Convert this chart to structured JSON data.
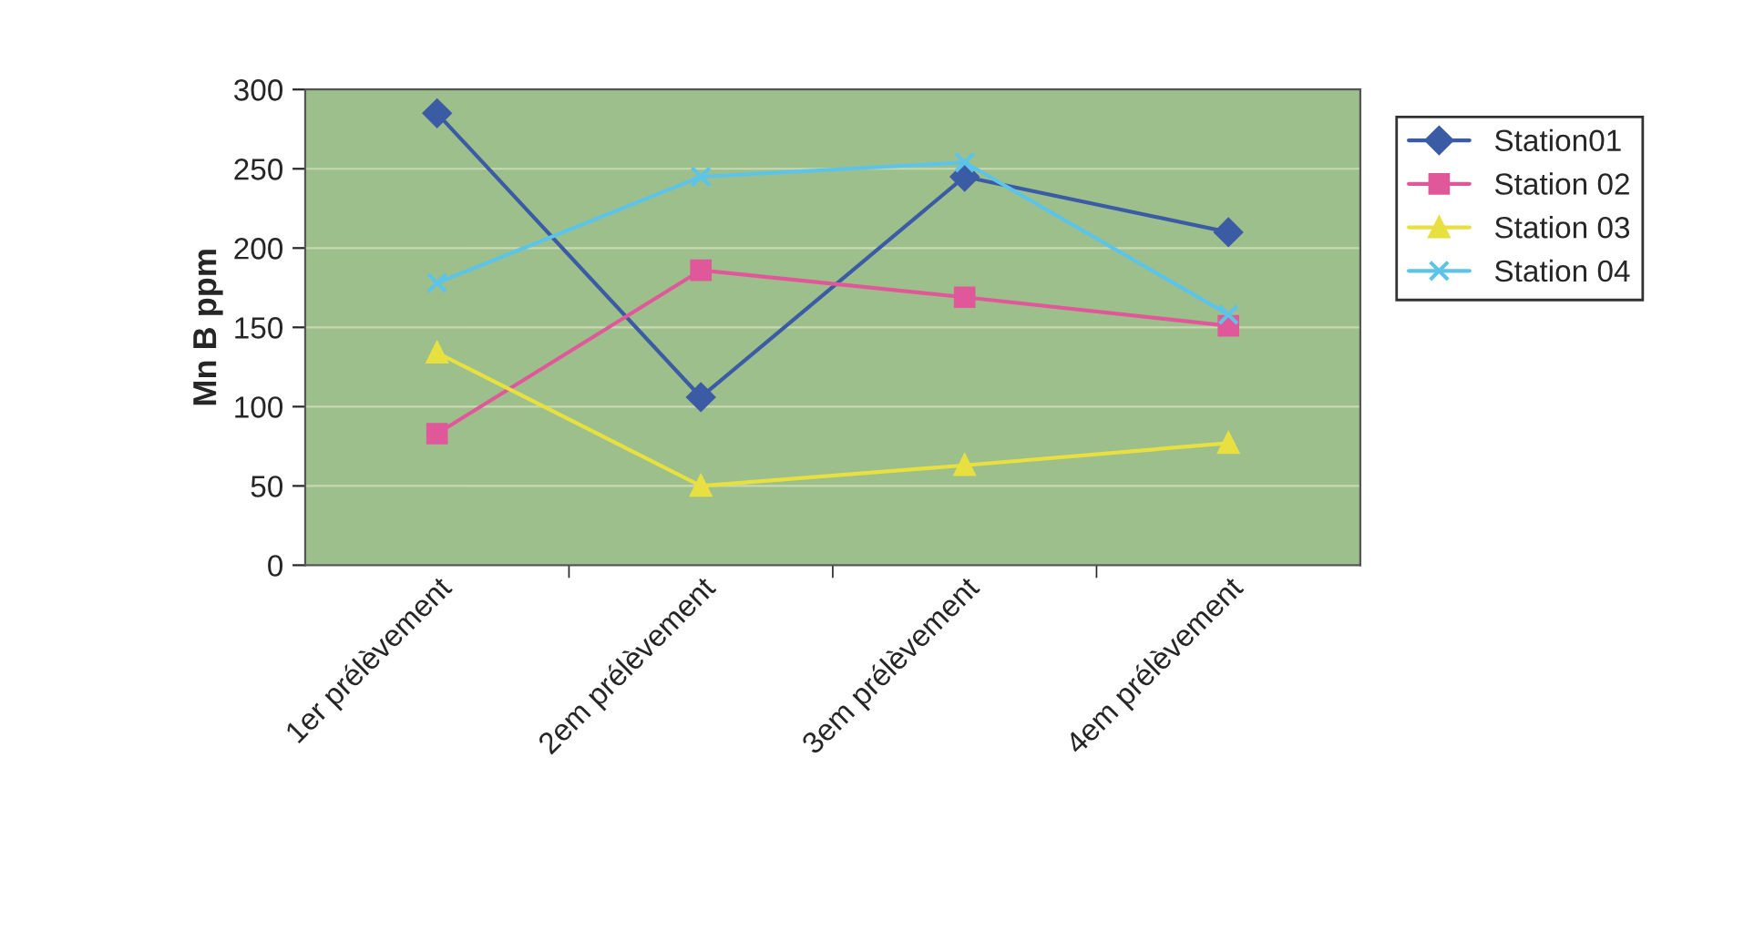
{
  "chart_data": {
    "type": "line",
    "ylabel": "Mn B ppm",
    "categories": [
      "1er prélèvement",
      "2em prélèvement",
      "3em prélèvement",
      "4em prélèvement"
    ],
    "series": [
      {
        "name": "Station01",
        "color": "#3b5ba5",
        "marker": "diamond",
        "values": [
          285,
          106,
          245,
          210
        ]
      },
      {
        "name": "Station 02",
        "color": "#e0589a",
        "marker": "square",
        "values": [
          83,
          186,
          169,
          151
        ]
      },
      {
        "name": "Station 03",
        "color": "#e8e040",
        "marker": "triangle",
        "values": [
          134,
          50,
          63,
          77
        ]
      },
      {
        "name": "Station 04",
        "color": "#5cc4e8",
        "marker": "cross",
        "values": [
          178,
          245,
          254,
          158
        ]
      }
    ],
    "ylim": [
      0,
      300
    ],
    "yticks": [
      0,
      50,
      100,
      150,
      200,
      250,
      300
    ],
    "grid": "y",
    "legend": "right"
  }
}
